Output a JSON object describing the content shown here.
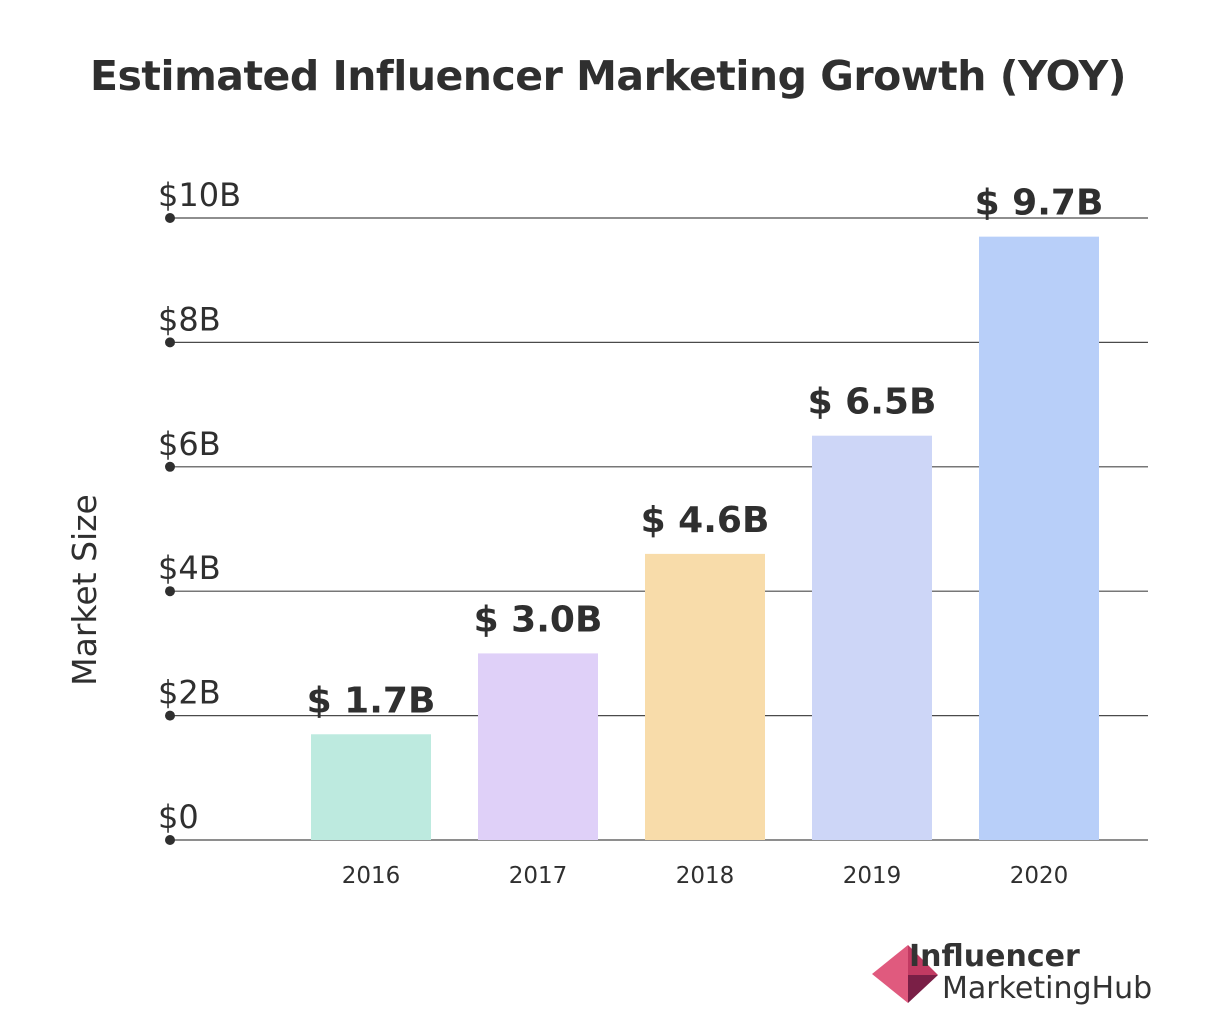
{
  "chart_data": {
    "type": "bar",
    "title": "Estimated Influencer Marketing Growth (YOY)",
    "xlabel": "",
    "ylabel": "Market Size",
    "categories": [
      "2016",
      "2017",
      "2018",
      "2019",
      "2020"
    ],
    "values": [
      1.7,
      3.0,
      4.6,
      6.5,
      9.7
    ],
    "value_labels": [
      "$ 1.7B",
      "$ 3.0B",
      "$ 4.6B",
      "$ 6.5B",
      "$ 9.7B"
    ],
    "ylim": [
      0,
      10
    ],
    "yticks": [
      0,
      2,
      4,
      6,
      8,
      10
    ],
    "ytick_labels": [
      "$0",
      "$2B",
      "$4B",
      "$6B",
      "$8B",
      "$10B"
    ],
    "bar_colors": [
      "#bdeadf",
      "#dfd0f8",
      "#f8dcaa",
      "#cdd6f7",
      "#b8cff9"
    ],
    "grid": true
  },
  "logo": {
    "line1": "Influencer",
    "line2a": "Marketing",
    "line2b": "Hub"
  }
}
